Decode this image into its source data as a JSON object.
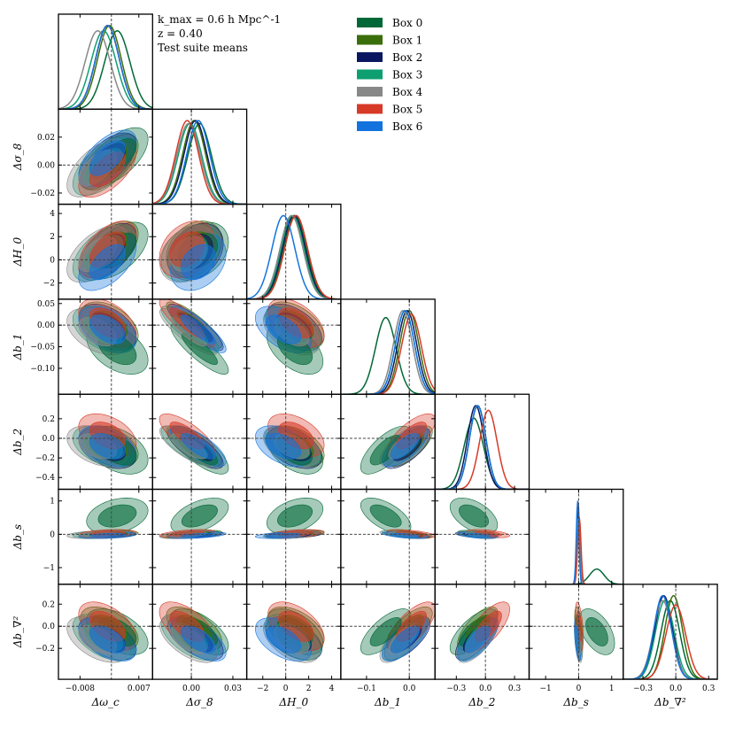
{
  "chart_data": {
    "type": "corner",
    "title": "",
    "annotation": {
      "line1": "k_max = 0.6 h Mpc^-1",
      "line2": "z = 0.40",
      "line3": "Test suite means"
    },
    "parameters": [
      {
        "key": "omega_c",
        "label": "Δω_c",
        "range": [
          -0.0135,
          0.0105
        ],
        "ticks": [
          -0.008,
          0.007
        ],
        "tick_labels": [
          "−0.008",
          "0.007"
        ],
        "truth": 0
      },
      {
        "key": "sigma8",
        "label": "Δσ_8",
        "range": [
          -0.028,
          0.04
        ],
        "ticks": [
          0.0,
          0.03
        ],
        "tick_labels": [
          "0.00",
          "0.03"
        ],
        "y_ticks": [
          -0.02,
          0.0,
          0.02
        ],
        "y_tick_labels": [
          "−0.02",
          "0.00",
          "0.02"
        ],
        "truth": 0
      },
      {
        "key": "H0",
        "label": "ΔH_0",
        "range": [
          -3.4,
          4.8
        ],
        "ticks": [
          -2,
          0,
          2,
          4
        ],
        "tick_labels": [
          "−2",
          "0",
          "2",
          "4"
        ],
        "truth": 0
      },
      {
        "key": "b1",
        "label": "Δb_1",
        "range": [
          -0.16,
          0.06
        ],
        "ticks": [
          -0.1,
          0.0
        ],
        "tick_labels": [
          "−0.1",
          "0.0"
        ],
        "y_ticks": [
          0.05,
          0.0,
          -0.05,
          -0.1
        ],
        "y_tick_labels": [
          "0.05",
          "0.00",
          "−0.05",
          "−0.10"
        ],
        "truth": 0
      },
      {
        "key": "b2",
        "label": "Δb_2",
        "range": [
          -0.52,
          0.45
        ],
        "ticks": [
          -0.3,
          0.0,
          0.3
        ],
        "tick_labels": [
          "−0.3",
          "0.0",
          "0.3"
        ],
        "y_ticks": [
          0.2,
          0.0,
          -0.2,
          -0.4
        ],
        "y_tick_labels": [
          "0.2",
          "0.0",
          "−0.2",
          "−0.4"
        ],
        "truth": 0
      },
      {
        "key": "bs",
        "label": "Δb_s",
        "range": [
          -1.5,
          1.35
        ],
        "ticks": [
          -1,
          0,
          1
        ],
        "tick_labels": [
          "−1",
          "0",
          "1"
        ],
        "truth": 0
      },
      {
        "key": "bnabla2",
        "label": "Δb_∇²",
        "range": [
          -0.48,
          0.38
        ],
        "ticks": [
          -0.3,
          0.0,
          0.3
        ],
        "tick_labels": [
          "−0.3",
          "0.0",
          "0.3"
        ],
        "y_ticks": [
          0.2,
          0.0,
          -0.2
        ],
        "y_tick_labels": [
          "0.2",
          "0.0",
          "−0.2"
        ],
        "truth": 0
      }
    ],
    "series": [
      {
        "name": "Box 0",
        "color": "#006837",
        "mean": [
          0.0015,
          0.006,
          0.8,
          -0.055,
          -0.12,
          0.55,
          -0.05
        ],
        "sd": [
          0.0032,
          0.0085,
          1.0,
          0.024,
          0.1,
          0.22,
          0.085
        ]
      },
      {
        "name": "Box 1",
        "color": "#3a6e0a",
        "mean": [
          -0.0005,
          0.002,
          0.9,
          0.0,
          -0.08,
          0.0,
          -0.02
        ],
        "sd": [
          0.003,
          0.0082,
          1.0,
          0.022,
          0.085,
          0.05,
          0.08
        ]
      },
      {
        "name": "Box 2",
        "color": "#0a1760",
        "mean": [
          -0.001,
          0.003,
          0.7,
          -0.005,
          -0.1,
          -0.02,
          -0.11
        ],
        "sd": [
          0.003,
          0.0082,
          1.0,
          0.022,
          0.085,
          0.04,
          0.08
        ]
      },
      {
        "name": "Box 3",
        "color": "#0e9f70",
        "mean": [
          -0.002,
          -0.001,
          0.6,
          -0.01,
          -0.08,
          0.0,
          -0.1
        ],
        "sd": [
          0.0032,
          0.0085,
          1.0,
          0.022,
          0.085,
          0.05,
          0.085
        ]
      },
      {
        "name": "Box 4",
        "color": "#888888",
        "mean": [
          -0.0035,
          -0.002,
          0.5,
          -0.015,
          -0.08,
          -0.01,
          -0.12
        ],
        "sd": [
          0.0032,
          0.0085,
          1.0,
          0.022,
          0.085,
          0.05,
          0.085
        ]
      },
      {
        "name": "Box 5",
        "color": "#d73a27",
        "mean": [
          -0.001,
          -0.003,
          0.9,
          0.005,
          0.03,
          0.02,
          0.0
        ],
        "sd": [
          0.003,
          0.0082,
          1.0,
          0.023,
          0.09,
          0.05,
          0.09
        ]
      },
      {
        "name": "Box 6",
        "color": "#1273de",
        "mean": [
          -0.001,
          0.005,
          -0.2,
          -0.01,
          -0.08,
          -0.03,
          -0.12
        ],
        "sd": [
          0.003,
          0.0082,
          1.0,
          0.022,
          0.085,
          0.04,
          0.08
        ]
      }
    ],
    "legend": {
      "placement": "top-right",
      "entries": [
        "Box 0",
        "Box 1",
        "Box 2",
        "Box 3",
        "Box 4",
        "Box 5",
        "Box 6"
      ]
    },
    "contour_levels": [
      "68%",
      "95%"
    ],
    "truth_lines": "dashed at 0"
  }
}
